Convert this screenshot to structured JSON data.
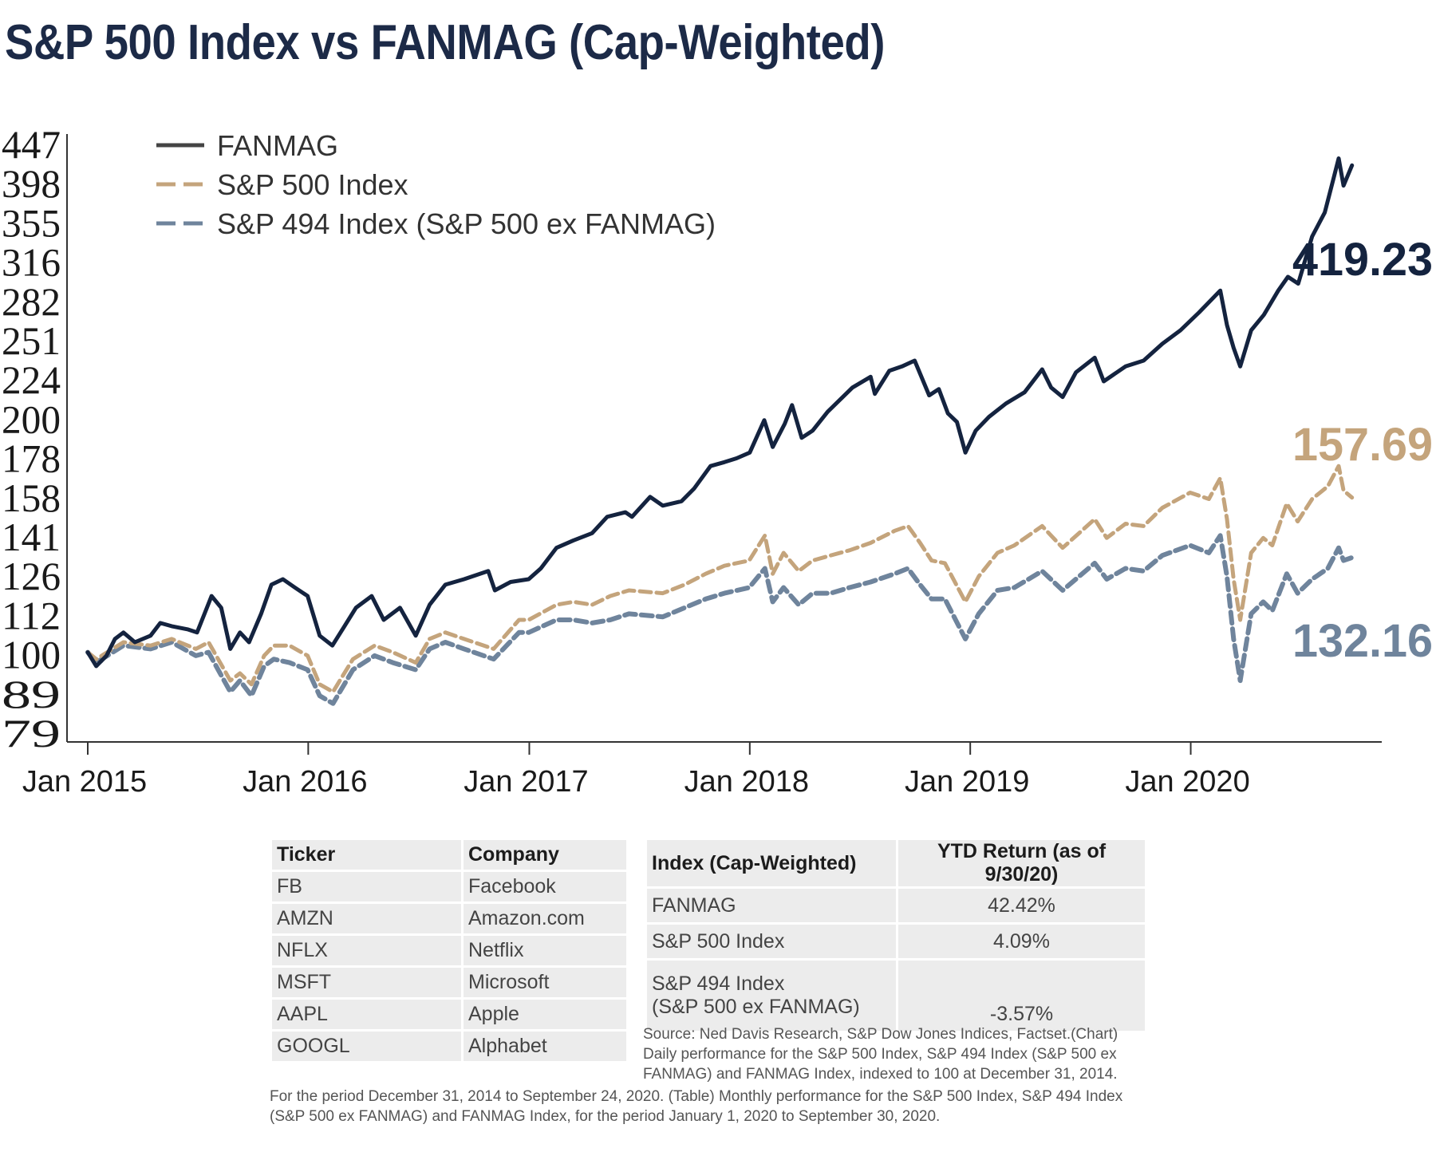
{
  "title": "S&P 500 Index vs FANMAG (Cap-Weighted)",
  "colors": {
    "fanmag": "#14233f",
    "sp500": "#c4a47c",
    "sp494": "#6f849c",
    "axis": "#333333"
  },
  "chart_data": {
    "type": "line",
    "title": "S&P 500 Index vs FANMAG (Cap-Weighted)",
    "y_scale": "log",
    "ylim": [
      79,
      447
    ],
    "y_ticks": [
      "447",
      "398",
      "355",
      "316",
      "282",
      "251",
      "224",
      "200",
      "178",
      "158",
      "141",
      "126",
      "112",
      "100",
      "89",
      "79"
    ],
    "x_ticks": [
      "Jan 2015",
      "Jan 2016",
      "Jan 2017",
      "Jan 2018",
      "Jan 2019",
      "Jan 2020"
    ],
    "xlim": [
      "2015-01-01",
      "2020-10-01"
    ],
    "legend_position": "top-left",
    "series": [
      {
        "name": "FANMAG",
        "style": "solid",
        "end_label": "419.23",
        "points": [
          [
            "2015-01-01",
            100
          ],
          [
            "2015-01-15",
            96
          ],
          [
            "2015-02-01",
            99
          ],
          [
            "2015-02-15",
            104
          ],
          [
            "2015-03-01",
            106
          ],
          [
            "2015-03-20",
            103
          ],
          [
            "2015-04-15",
            105
          ],
          [
            "2015-05-01",
            109
          ],
          [
            "2015-05-20",
            108
          ],
          [
            "2015-06-15",
            107
          ],
          [
            "2015-07-01",
            106
          ],
          [
            "2015-07-25",
            118
          ],
          [
            "2015-08-10",
            114
          ],
          [
            "2015-08-25",
            101
          ],
          [
            "2015-09-10",
            106
          ],
          [
            "2015-09-25",
            103
          ],
          [
            "2015-10-15",
            112
          ],
          [
            "2015-11-01",
            122
          ],
          [
            "2015-11-20",
            124
          ],
          [
            "2015-12-10",
            121
          ],
          [
            "2015-12-31",
            118
          ],
          [
            "2016-01-20",
            105
          ],
          [
            "2016-02-10",
            102
          ],
          [
            "2016-03-01",
            108
          ],
          [
            "2016-03-20",
            114
          ],
          [
            "2016-04-15",
            118
          ],
          [
            "2016-05-05",
            110
          ],
          [
            "2016-06-01",
            114
          ],
          [
            "2016-06-27",
            105
          ],
          [
            "2016-07-20",
            115
          ],
          [
            "2016-08-15",
            122
          ],
          [
            "2016-09-15",
            124
          ],
          [
            "2016-10-25",
            127
          ],
          [
            "2016-11-05",
            120
          ],
          [
            "2016-12-01",
            123
          ],
          [
            "2016-12-31",
            124
          ],
          [
            "2017-01-20",
            128
          ],
          [
            "2017-02-15",
            136
          ],
          [
            "2017-03-15",
            139
          ],
          [
            "2017-04-15",
            142
          ],
          [
            "2017-05-10",
            149
          ],
          [
            "2017-06-09",
            151
          ],
          [
            "2017-06-20",
            149
          ],
          [
            "2017-07-20",
            158
          ],
          [
            "2017-08-10",
            154
          ],
          [
            "2017-09-10",
            156
          ],
          [
            "2017-10-01",
            162
          ],
          [
            "2017-10-28",
            173
          ],
          [
            "2017-11-20",
            175
          ],
          [
            "2017-12-10",
            177
          ],
          [
            "2018-01-01",
            180
          ],
          [
            "2018-01-25",
            198
          ],
          [
            "2018-02-08",
            183
          ],
          [
            "2018-02-28",
            196
          ],
          [
            "2018-03-12",
            207
          ],
          [
            "2018-03-28",
            188
          ],
          [
            "2018-04-15",
            192
          ],
          [
            "2018-05-10",
            203
          ],
          [
            "2018-06-20",
            218
          ],
          [
            "2018-07-20",
            225
          ],
          [
            "2018-07-27",
            214
          ],
          [
            "2018-08-20",
            229
          ],
          [
            "2018-09-10",
            232
          ],
          [
            "2018-10-01",
            236
          ],
          [
            "2018-10-25",
            213
          ],
          [
            "2018-11-10",
            217
          ],
          [
            "2018-11-25",
            202
          ],
          [
            "2018-12-10",
            197
          ],
          [
            "2018-12-24",
            180
          ],
          [
            "2019-01-10",
            192
          ],
          [
            "2019-02-01",
            200
          ],
          [
            "2019-03-01",
            208
          ],
          [
            "2019-04-01",
            215
          ],
          [
            "2019-04-30",
            230
          ],
          [
            "2019-05-15",
            218
          ],
          [
            "2019-06-03",
            212
          ],
          [
            "2019-06-25",
            228
          ],
          [
            "2019-07-26",
            238
          ],
          [
            "2019-08-10",
            222
          ],
          [
            "2019-09-15",
            232
          ],
          [
            "2019-10-15",
            236
          ],
          [
            "2019-11-15",
            248
          ],
          [
            "2019-12-15",
            258
          ],
          [
            "2020-01-15",
            272
          ],
          [
            "2020-02-19",
            290
          ],
          [
            "2020-03-01",
            262
          ],
          [
            "2020-03-12",
            245
          ],
          [
            "2020-03-23",
            232
          ],
          [
            "2020-04-10",
            258
          ],
          [
            "2020-05-01",
            270
          ],
          [
            "2020-05-25",
            290
          ],
          [
            "2020-06-10",
            302
          ],
          [
            "2020-06-27",
            296
          ],
          [
            "2020-07-20",
            340
          ],
          [
            "2020-08-10",
            365
          ],
          [
            "2020-08-25",
            405
          ],
          [
            "2020-09-02",
            428
          ],
          [
            "2020-09-10",
            395
          ],
          [
            "2020-09-24",
            419.23
          ]
        ]
      },
      {
        "name": "S&P 500 Index",
        "style": "dashed",
        "end_label": "157.69",
        "points": [
          [
            "2015-01-01",
            100
          ],
          [
            "2015-01-15",
            98
          ],
          [
            "2015-03-01",
            103
          ],
          [
            "2015-04-15",
            102
          ],
          [
            "2015-05-20",
            104
          ],
          [
            "2015-06-29",
            101
          ],
          [
            "2015-07-20",
            103
          ],
          [
            "2015-08-25",
            92
          ],
          [
            "2015-09-10",
            94
          ],
          [
            "2015-09-29",
            91
          ],
          [
            "2015-10-20",
            99
          ],
          [
            "2015-11-05",
            102
          ],
          [
            "2015-12-01",
            102
          ],
          [
            "2015-12-31",
            99
          ],
          [
            "2016-01-20",
            91
          ],
          [
            "2016-02-11",
            89
          ],
          [
            "2016-03-15",
            98
          ],
          [
            "2016-04-20",
            102
          ],
          [
            "2016-05-20",
            100
          ],
          [
            "2016-06-27",
            97
          ],
          [
            "2016-07-20",
            104
          ],
          [
            "2016-08-15",
            106
          ],
          [
            "2016-09-15",
            104
          ],
          [
            "2016-11-03",
            101
          ],
          [
            "2016-12-15",
            110
          ],
          [
            "2016-12-31",
            110
          ],
          [
            "2017-02-15",
            115
          ],
          [
            "2017-03-15",
            116
          ],
          [
            "2017-04-15",
            115
          ],
          [
            "2017-05-15",
            118
          ],
          [
            "2017-06-15",
            120
          ],
          [
            "2017-08-10",
            119
          ],
          [
            "2017-09-15",
            122
          ],
          [
            "2017-10-20",
            126
          ],
          [
            "2017-11-20",
            129
          ],
          [
            "2017-12-31",
            131
          ],
          [
            "2018-01-26",
            141
          ],
          [
            "2018-02-08",
            126
          ],
          [
            "2018-02-26",
            134
          ],
          [
            "2018-03-23",
            127
          ],
          [
            "2018-04-15",
            131
          ],
          [
            "2018-05-15",
            133
          ],
          [
            "2018-06-15",
            135
          ],
          [
            "2018-07-20",
            138
          ],
          [
            "2018-08-29",
            143
          ],
          [
            "2018-09-20",
            145
          ],
          [
            "2018-10-10",
            138
          ],
          [
            "2018-10-29",
            131
          ],
          [
            "2018-11-20",
            130
          ],
          [
            "2018-12-24",
            116
          ],
          [
            "2019-01-15",
            125
          ],
          [
            "2019-02-15",
            134
          ],
          [
            "2019-03-15",
            137
          ],
          [
            "2019-04-30",
            145
          ],
          [
            "2019-06-03",
            136
          ],
          [
            "2019-07-26",
            148
          ],
          [
            "2019-08-15",
            140
          ],
          [
            "2019-09-15",
            146
          ],
          [
            "2019-10-15",
            145
          ],
          [
            "2019-11-15",
            153
          ],
          [
            "2019-12-31",
            160
          ],
          [
            "2020-01-31",
            157
          ],
          [
            "2020-02-19",
            167
          ],
          [
            "2020-03-01",
            148
          ],
          [
            "2020-03-12",
            124
          ],
          [
            "2020-03-23",
            110
          ],
          [
            "2020-04-10",
            134
          ],
          [
            "2020-04-30",
            140
          ],
          [
            "2020-05-15",
            137
          ],
          [
            "2020-06-08",
            155
          ],
          [
            "2020-06-26",
            147
          ],
          [
            "2020-07-20",
            157
          ],
          [
            "2020-08-15",
            163
          ],
          [
            "2020-09-02",
            173
          ],
          [
            "2020-09-10",
            161
          ],
          [
            "2020-09-24",
            157.69
          ]
        ]
      },
      {
        "name": "S&P 494 Index (S&P 500 ex FANMAG)",
        "style": "dashed",
        "end_label": "132.16",
        "points": [
          [
            "2015-01-01",
            100
          ],
          [
            "2015-01-15",
            97
          ],
          [
            "2015-03-01",
            102
          ],
          [
            "2015-04-15",
            101
          ],
          [
            "2015-05-20",
            103
          ],
          [
            "2015-06-29",
            99
          ],
          [
            "2015-07-20",
            100
          ],
          [
            "2015-08-25",
            89
          ],
          [
            "2015-09-10",
            92
          ],
          [
            "2015-09-29",
            88
          ],
          [
            "2015-10-20",
            96
          ],
          [
            "2015-11-05",
            98
          ],
          [
            "2015-12-01",
            97
          ],
          [
            "2015-12-31",
            95
          ],
          [
            "2016-01-20",
            88
          ],
          [
            "2016-02-11",
            86
          ],
          [
            "2016-03-15",
            95
          ],
          [
            "2016-04-20",
            99
          ],
          [
            "2016-05-20",
            97
          ],
          [
            "2016-06-27",
            95
          ],
          [
            "2016-07-20",
            101
          ],
          [
            "2016-08-15",
            103
          ],
          [
            "2016-09-15",
            101
          ],
          [
            "2016-11-03",
            98
          ],
          [
            "2016-12-15",
            106
          ],
          [
            "2016-12-31",
            106
          ],
          [
            "2017-02-15",
            110
          ],
          [
            "2017-03-15",
            110
          ],
          [
            "2017-04-15",
            109
          ],
          [
            "2017-05-15",
            110
          ],
          [
            "2017-06-15",
            112
          ],
          [
            "2017-08-10",
            111
          ],
          [
            "2017-09-15",
            114
          ],
          [
            "2017-10-20",
            117
          ],
          [
            "2017-11-20",
            119
          ],
          [
            "2017-12-31",
            121
          ],
          [
            "2018-01-26",
            128
          ],
          [
            "2018-02-08",
            116
          ],
          [
            "2018-02-26",
            121
          ],
          [
            "2018-03-23",
            115
          ],
          [
            "2018-04-15",
            119
          ],
          [
            "2018-05-15",
            119
          ],
          [
            "2018-06-15",
            121
          ],
          [
            "2018-07-20",
            123
          ],
          [
            "2018-08-29",
            126
          ],
          [
            "2018-09-20",
            128
          ],
          [
            "2018-10-10",
            122
          ],
          [
            "2018-10-29",
            117
          ],
          [
            "2018-11-20",
            117
          ],
          [
            "2018-12-24",
            104
          ],
          [
            "2019-01-15",
            112
          ],
          [
            "2019-02-15",
            120
          ],
          [
            "2019-03-15",
            121
          ],
          [
            "2019-04-30",
            127
          ],
          [
            "2019-06-03",
            120
          ],
          [
            "2019-07-26",
            130
          ],
          [
            "2019-08-15",
            124
          ],
          [
            "2019-09-15",
            128
          ],
          [
            "2019-10-15",
            127
          ],
          [
            "2019-11-15",
            133
          ],
          [
            "2019-12-31",
            137
          ],
          [
            "2020-01-31",
            134
          ],
          [
            "2020-02-19",
            141
          ],
          [
            "2020-03-01",
            125
          ],
          [
            "2020-03-12",
            104
          ],
          [
            "2020-03-23",
            92
          ],
          [
            "2020-04-10",
            112
          ],
          [
            "2020-04-30",
            116
          ],
          [
            "2020-05-15",
            113
          ],
          [
            "2020-06-08",
            126
          ],
          [
            "2020-06-26",
            119
          ],
          [
            "2020-07-20",
            124
          ],
          [
            "2020-08-15",
            128
          ],
          [
            "2020-09-02",
            136
          ],
          [
            "2020-09-10",
            131
          ],
          [
            "2020-09-24",
            132.16
          ]
        ]
      }
    ]
  },
  "table1": {
    "headers": [
      "Ticker",
      "Company"
    ],
    "rows": [
      {
        "ticker": "FB",
        "company": "Facebook"
      },
      {
        "ticker": "AMZN",
        "company": "Amazon.com"
      },
      {
        "ticker": "NFLX",
        "company": "Netflix"
      },
      {
        "ticker": "MSFT",
        "company": "Microsoft"
      },
      {
        "ticker": "AAPL",
        "company": "Apple"
      },
      {
        "ticker": "GOOGL",
        "company": "Alphabet"
      }
    ]
  },
  "table2": {
    "headers": [
      "Index (Cap-Weighted)",
      "YTD Return (as of 9/30/20)"
    ],
    "rows": [
      {
        "index": "FANMAG",
        "ytd": "42.42%"
      },
      {
        "index": "S&P 500 Index",
        "ytd": "4.09%"
      },
      {
        "index_line1": "S&P 494 Index",
        "index_line2": "(S&P 500 ex FANMAG)",
        "ytd": "-3.57%"
      }
    ]
  },
  "notes": {
    "source": "Source: Ned Davis Research, S&P Dow Jones Indices, Factset.(Chart) Daily performance for the S&P 500 Index, S&P 494 Index (S&P 500 ex FANMAG) and FANMAG Index, indexed to 100 at December 31, 2014.",
    "period": "For the period December 31, 2014 to September 24, 2020. (Table) Monthly performance for the S&P 500 Index, S&P 494 Index (S&P 500 ex FANMAG) and FANMAG Index, for the period January 1, 2020 to September 30, 2020."
  }
}
